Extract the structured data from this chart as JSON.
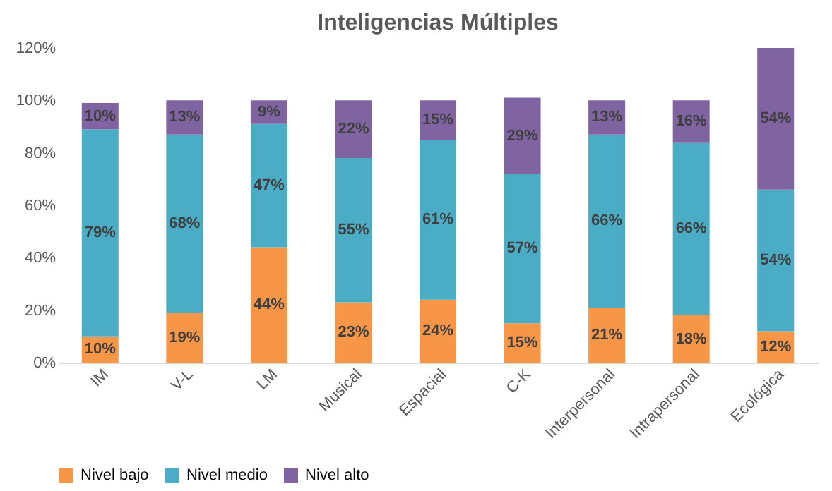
{
  "chart_data": {
    "type": "bar",
    "stacked": true,
    "title": "Inteligencias Múltiples",
    "categories": [
      "IM",
      "V-L",
      "LM",
      "Musical",
      "Espacial",
      "C-K",
      "Interpersonal",
      "Intrapersonal",
      "Ecológica"
    ],
    "series": [
      {
        "name": "Nivel bajo",
        "color": "#f79646",
        "values": [
          10,
          19,
          44,
          23,
          24,
          15,
          21,
          18,
          12
        ],
        "value_labels": [
          "10%",
          "19%",
          "44%",
          "23%",
          "24%",
          "15%",
          "21%",
          "18%",
          "12%"
        ]
      },
      {
        "name": "Nivel medio",
        "color": "#4bacc6",
        "values": [
          79,
          68,
          47,
          55,
          61,
          57,
          66,
          66,
          54
        ],
        "value_labels": [
          "79%",
          "68%",
          "47%",
          "55%",
          "61%",
          "57%",
          "66%",
          "66%",
          "54%"
        ]
      },
      {
        "name": "Nivel alto",
        "color": "#8064a2",
        "values": [
          10,
          13,
          9,
          22,
          15,
          29,
          13,
          16,
          54
        ],
        "value_labels": [
          "10%",
          "13%",
          "9%",
          "22%",
          "15%",
          "29%",
          "13%",
          "16%",
          "54%"
        ]
      }
    ],
    "ylim": [
      0,
      120
    ],
    "yticks": [
      {
        "value": 0,
        "label": "0%"
      },
      {
        "value": 20,
        "label": "20%"
      },
      {
        "value": 40,
        "label": "40%"
      },
      {
        "value": 60,
        "label": "60%"
      },
      {
        "value": 80,
        "label": "80%"
      },
      {
        "value": 100,
        "label": "100%"
      },
      {
        "value": 120,
        "label": "120%"
      }
    ],
    "grid": false,
    "legend": "bottom"
  }
}
